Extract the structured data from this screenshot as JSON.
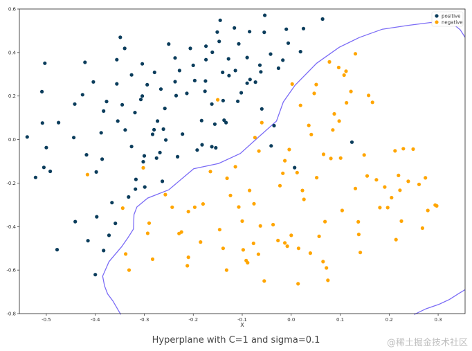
{
  "caption": "Hyperplane with C=1 and sigma=0.1",
  "watermark": "@稀土掘金技术社区",
  "chart_data": {
    "type": "scatter",
    "xlabel": "X",
    "ylabel": "",
    "xlim": [
      -0.555,
      0.355
    ],
    "ylim": [
      -0.8,
      0.6
    ],
    "xticks": [
      -0.5,
      -0.4,
      -0.3,
      -0.2,
      -0.1,
      0.0,
      0.1,
      0.2,
      0.3
    ],
    "yticks": [
      0.6,
      0.4,
      0.2,
      0.0,
      -0.2,
      -0.4,
      -0.6,
      -0.8
    ],
    "xtick_labels": [
      "-0.5",
      "-0.4",
      "-0.3",
      "-0.2",
      "-0.1",
      "0.0",
      "0.1",
      "0.2",
      "0.3"
    ],
    "ytick_labels": [
      "0.6",
      "0.4",
      "0.2",
      "0.0",
      "-0.2",
      "-0.4",
      "-0.6",
      "-0.8"
    ],
    "grid": false,
    "legend_position": "top-right",
    "series": [
      {
        "name": "positive",
        "color": "#0b3d5c",
        "points": [
          [
            -0.539,
            0.012
          ],
          [
            -0.522,
            -0.174
          ],
          [
            -0.509,
            0.22
          ],
          [
            -0.508,
            0.076
          ],
          [
            -0.503,
            0.351
          ],
          [
            -0.505,
            -0.128
          ],
          [
            -0.5,
            -0.037
          ],
          [
            -0.492,
            -0.146
          ],
          [
            -0.475,
            0.078
          ],
          [
            -0.478,
            -0.506
          ],
          [
            -0.442,
            0.163
          ],
          [
            -0.444,
            0.009
          ],
          [
            -0.441,
            -0.377
          ],
          [
            -0.426,
            0.206
          ],
          [
            -0.421,
            0.355
          ],
          [
            -0.418,
            -0.07
          ],
          [
            -0.415,
            -0.465
          ],
          [
            -0.404,
            0.265
          ],
          [
            -0.4,
            -0.621
          ],
          [
            -0.398,
            -0.149
          ],
          [
            -0.397,
            -0.355
          ],
          [
            -0.388,
            0.031
          ],
          [
            -0.386,
            -0.09
          ],
          [
            -0.383,
            0.131
          ],
          [
            -0.383,
            -0.51
          ],
          [
            -0.377,
            0.175
          ],
          [
            -0.372,
            -0.44
          ],
          [
            -0.366,
            -0.29
          ],
          [
            -0.354,
            0.085
          ],
          [
            -0.359,
            -0.385
          ],
          [
            -0.356,
            0.367
          ],
          [
            -0.356,
            0.256
          ],
          [
            -0.349,
            0.47
          ],
          [
            -0.345,
            0.16
          ],
          [
            -0.34,
            0.419
          ],
          [
            -0.339,
            0.044
          ],
          [
            -0.332,
            -0.264
          ],
          [
            -0.326,
            0.297
          ],
          [
            -0.326,
            -0.032
          ],
          [
            -0.319,
            0.124
          ],
          [
            -0.317,
            -0.183
          ],
          [
            -0.318,
            -0.228
          ],
          [
            -0.302,
            -0.102
          ],
          [
            -0.307,
            0.184
          ],
          [
            -0.304,
            0.348
          ],
          [
            -0.304,
            0.2
          ],
          [
            -0.3,
            -0.075
          ],
          [
            -0.299,
            -0.218
          ],
          [
            -0.294,
            0.252
          ],
          [
            -0.283,
            0.024
          ],
          [
            -0.28,
            0.045
          ],
          [
            -0.279,
            0.309
          ],
          [
            -0.275,
            -0.085
          ],
          [
            -0.273,
            0.085
          ],
          [
            -0.263,
            -0.192
          ],
          [
            -0.268,
            -0.06
          ],
          [
            -0.266,
            0.232
          ],
          [
            -0.261,
            0.048
          ],
          [
            -0.258,
            0.143
          ],
          [
            -0.256,
            -0.002
          ],
          [
            -0.25,
            0.439
          ],
          [
            -0.237,
            0.266
          ],
          [
            -0.237,
            0.375
          ],
          [
            -0.232,
            -0.079
          ],
          [
            -0.235,
            0.202
          ],
          [
            -0.228,
            0.317
          ],
          [
            -0.222,
            0.025
          ],
          [
            -0.213,
            0.212
          ],
          [
            -0.206,
            0.419
          ],
          [
            -0.2,
            0.341
          ],
          [
            -0.197,
            0.271
          ],
          [
            -0.192,
            -0.048
          ],
          [
            -0.183,
            0.087
          ],
          [
            -0.182,
            -0.024
          ],
          [
            -0.176,
            0.222
          ],
          [
            -0.175,
            0.269
          ],
          [
            -0.174,
            0.367
          ],
          [
            -0.174,
            0.429
          ],
          [
            -0.162,
            -0.033
          ],
          [
            -0.162,
            0.163
          ],
          [
            -0.161,
            0.401
          ],
          [
            -0.156,
            0.071
          ],
          [
            -0.151,
            0.494
          ],
          [
            -0.154,
            -0.038
          ],
          [
            -0.147,
            0.451
          ],
          [
            -0.145,
            0.548
          ],
          [
            -0.139,
            0.179
          ],
          [
            -0.14,
            0.309
          ],
          [
            -0.137,
            0.089
          ],
          [
            -0.133,
            0.078
          ],
          [
            -0.128,
            0.371
          ],
          [
            -0.127,
            0.294
          ],
          [
            -0.116,
            0.513
          ],
          [
            -0.114,
            0.317
          ],
          [
            -0.109,
            0.176
          ],
          [
            -0.107,
            0.44
          ],
          [
            -0.102,
            0.215
          ],
          [
            -0.09,
            0.259
          ],
          [
            -0.09,
            0.377
          ],
          [
            -0.085,
            0.496
          ],
          [
            -0.084,
            0.276
          ],
          [
            -0.073,
            0.264
          ],
          [
            -0.064,
            0.342
          ],
          [
            -0.062,
            0.311
          ],
          [
            -0.06,
            0.141
          ],
          [
            -0.055,
            0.493
          ],
          [
            -0.054,
            0.571
          ],
          [
            -0.042,
            0.393
          ],
          [
            -0.041,
            -0.029
          ],
          [
            -0.035,
            0.064
          ],
          [
            -0.026,
            0.328
          ],
          [
            -0.017,
            0.365
          ],
          [
            -0.01,
            0.507
          ],
          [
            -0.006,
            0.443
          ],
          [
            0.007,
            -0.129
          ],
          [
            0.019,
            0.404
          ],
          [
            0.025,
            0.51
          ],
          [
            0.064,
            0.554
          ],
          [
            0.124,
            -0.012
          ]
        ]
      },
      {
        "name": "negative",
        "color": "#ffa500",
        "points": [
          [
            -0.416,
            -0.161
          ],
          [
            -0.344,
            -0.315
          ],
          [
            -0.338,
            -0.526
          ],
          [
            -0.331,
            -0.6
          ],
          [
            -0.302,
            -0.13
          ],
          [
            -0.293,
            -0.431
          ],
          [
            -0.29,
            -0.384
          ],
          [
            -0.283,
            -0.55
          ],
          [
            -0.257,
            -0.253
          ],
          [
            -0.243,
            -0.311
          ],
          [
            -0.229,
            -0.432
          ],
          [
            -0.224,
            -0.425
          ],
          [
            -0.212,
            -0.58
          ],
          [
            -0.21,
            -0.541
          ],
          [
            -0.21,
            -0.331
          ],
          [
            -0.197,
            -0.311
          ],
          [
            -0.185,
            -0.471
          ],
          [
            -0.18,
            -0.296
          ],
          [
            -0.165,
            -0.147
          ],
          [
            -0.15,
            0.183
          ],
          [
            -0.146,
            -0.414
          ],
          [
            -0.139,
            -0.5
          ],
          [
            -0.131,
            -0.178
          ],
          [
            -0.132,
            -0.6
          ],
          [
            -0.124,
            -0.257
          ],
          [
            -0.114,
            -0.125
          ],
          [
            -0.107,
            -0.31
          ],
          [
            -0.1,
            -0.375
          ],
          [
            -0.098,
            -0.507
          ],
          [
            -0.092,
            -0.556
          ],
          [
            -0.089,
            -0.566
          ],
          [
            -0.085,
            -0.234
          ],
          [
            -0.077,
            -0.477
          ],
          [
            -0.076,
            -0.295
          ],
          [
            -0.074,
            0.009
          ],
          [
            -0.067,
            -0.527
          ],
          [
            -0.066,
            -0.053
          ],
          [
            -0.063,
            -0.397
          ],
          [
            -0.06,
            0.078
          ],
          [
            -0.055,
            -0.65
          ],
          [
            -0.037,
            -0.391
          ],
          [
            -0.027,
            -0.464
          ],
          [
            -0.023,
            -0.212
          ],
          [
            -0.017,
            -0.155
          ],
          [
            -0.013,
            -0.475
          ],
          [
            -0.013,
            -0.097
          ],
          [
            -0.008,
            -0.49
          ],
          [
            -0.004,
            -0.046
          ],
          [
            0.0,
            -0.44
          ],
          [
            0.002,
            0.255
          ],
          [
            0.014,
            -0.663
          ],
          [
            0.012,
            -0.152
          ],
          [
            0.015,
            -0.5
          ],
          [
            0.019,
            0.157
          ],
          [
            0.023,
            -0.234
          ],
          [
            0.026,
            -0.275
          ],
          [
            0.036,
            0.065
          ],
          [
            0.039,
            -0.522
          ],
          [
            0.041,
            0.023
          ],
          [
            0.047,
            0.212
          ],
          [
            0.051,
            0.253
          ],
          [
            0.052,
            -0.175
          ],
          [
            0.057,
            -0.445
          ],
          [
            0.065,
            -0.561
          ],
          [
            0.066,
            -0.068
          ],
          [
            0.069,
            -0.377
          ],
          [
            0.072,
            -0.59
          ],
          [
            0.075,
            -0.647
          ],
          [
            0.078,
            0.357
          ],
          [
            0.081,
            -0.087
          ],
          [
            0.085,
            0.044
          ],
          [
            0.088,
            0.118
          ],
          [
            0.097,
            0.331
          ],
          [
            0.098,
            0.085
          ],
          [
            0.101,
            -0.085
          ],
          [
            0.104,
            -0.326
          ],
          [
            0.108,
            0.296
          ],
          [
            0.112,
            0.314
          ],
          [
            0.113,
            0.169
          ],
          [
            0.122,
            0.221
          ],
          [
            0.131,
            0.394
          ],
          [
            0.131,
            -0.225
          ],
          [
            0.137,
            -0.378
          ],
          [
            0.138,
            -0.436
          ],
          [
            0.141,
            -0.519
          ],
          [
            0.149,
            -0.071
          ],
          [
            0.155,
            -0.167
          ],
          [
            0.158,
            0.203
          ],
          [
            0.166,
            0.171
          ],
          [
            0.174,
            -0.185
          ],
          [
            0.181,
            -0.313
          ],
          [
            0.191,
            -0.218
          ],
          [
            0.197,
            -0.313
          ],
          [
            0.205,
            -0.267
          ],
          [
            0.212,
            -0.052
          ],
          [
            0.214,
            -0.46
          ],
          [
            0.219,
            -0.165
          ],
          [
            0.222,
            -0.233
          ],
          [
            0.225,
            -0.375
          ],
          [
            0.229,
            -0.042
          ],
          [
            0.239,
            -0.192
          ],
          [
            0.249,
            -0.044
          ],
          [
            0.261,
            -0.206
          ],
          [
            0.268,
            -0.407
          ],
          [
            0.274,
            -0.176
          ],
          [
            0.279,
            -0.326
          ],
          [
            0.294,
            -0.301
          ],
          [
            0.297,
            -0.305
          ]
        ]
      }
    ],
    "decision_boundary": {
      "color": "#7b6cf6",
      "segments": [
        [
          [
            -0.348,
            -0.804
          ],
          [
            -0.364,
            -0.742
          ],
          [
            -0.375,
            -0.709
          ],
          [
            -0.381,
            -0.673
          ],
          [
            -0.385,
            -0.628
          ],
          [
            -0.372,
            -0.561
          ],
          [
            -0.346,
            -0.492
          ],
          [
            -0.333,
            -0.45
          ],
          [
            -0.322,
            -0.411
          ],
          [
            -0.321,
            -0.345
          ],
          [
            -0.315,
            -0.31
          ],
          [
            -0.293,
            -0.269
          ],
          [
            -0.25,
            -0.231
          ],
          [
            -0.199,
            -0.134
          ],
          [
            -0.148,
            -0.11
          ],
          [
            -0.104,
            -0.064
          ],
          [
            -0.066,
            0.013
          ],
          [
            -0.03,
            0.085
          ],
          [
            -0.016,
            0.173
          ],
          [
            0.008,
            0.25
          ],
          [
            0.052,
            0.351
          ],
          [
            0.098,
            0.424
          ],
          [
            0.139,
            0.469
          ],
          [
            0.186,
            0.507
          ],
          [
            0.239,
            0.525
          ],
          [
            0.285,
            0.538
          ],
          [
            0.308,
            0.537
          ],
          [
            0.331,
            0.53
          ],
          [
            0.345,
            0.505
          ],
          [
            0.355,
            0.47
          ]
        ],
        [
          [
            0.251,
            -0.804
          ],
          [
            0.275,
            -0.778
          ],
          [
            0.301,
            -0.758
          ],
          [
            0.323,
            -0.735
          ],
          [
            0.341,
            -0.709
          ],
          [
            0.355,
            -0.69
          ]
        ]
      ]
    }
  }
}
